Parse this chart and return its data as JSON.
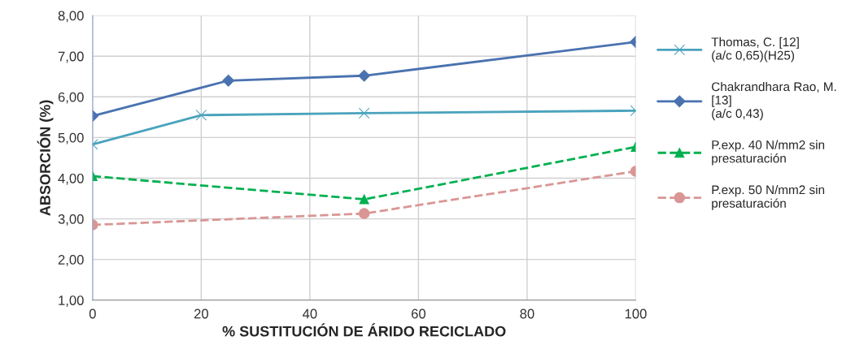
{
  "chart_data": {
    "type": "line",
    "xlabel": "% SUSTITUCIÓN DE ÁRIDO RECICLADO",
    "ylabel": "ABSORCIÓN (%)",
    "xlim": [
      0,
      100
    ],
    "xticks": [
      0,
      20,
      40,
      60,
      80,
      100
    ],
    "ylim": [
      1,
      8
    ],
    "yticks": [
      {
        "value": 1,
        "label": "1,00"
      },
      {
        "value": 2,
        "label": "2,00"
      },
      {
        "value": 3,
        "label": "3,00"
      },
      {
        "value": 4,
        "label": "4,00"
      },
      {
        "value": 5,
        "label": "5,00"
      },
      {
        "value": 6,
        "label": "6,00"
      },
      {
        "value": 7,
        "label": "7,00"
      },
      {
        "value": 8,
        "label": "8,00"
      }
    ],
    "grid": true,
    "legend": "right",
    "series": [
      {
        "name": "Thomas, C. [12]\n(a/c 0,65)(H25)",
        "color": "#4aa3bd",
        "x": [
          0,
          20,
          50,
          100
        ],
        "values": [
          4.83,
          5.55,
          5.6,
          5.66
        ],
        "marker": "cross",
        "line_style": "solid"
      },
      {
        "name": "Chakrandhara Rao, M.\n[13]\n(a/c 0,43)",
        "color": "#4a72b0",
        "x": [
          0,
          25,
          50,
          100
        ],
        "values": [
          5.53,
          6.4,
          6.52,
          7.35
        ],
        "marker": "diamond",
        "line_style": "solid"
      },
      {
        "name": "P.exp. 40 N/mm2 sin\npresaturación",
        "color": "#00b050",
        "x": [
          0,
          50,
          100
        ],
        "values": [
          4.05,
          3.48,
          4.77
        ],
        "marker": "triangle",
        "line_style": "dashed"
      },
      {
        "name": "P.exp. 50 N/mm2 sin\npresaturación",
        "color": "#d99694",
        "x": [
          0,
          50,
          100
        ],
        "values": [
          2.85,
          3.13,
          4.17
        ],
        "marker": "circle",
        "line_style": "dashed"
      }
    ]
  }
}
